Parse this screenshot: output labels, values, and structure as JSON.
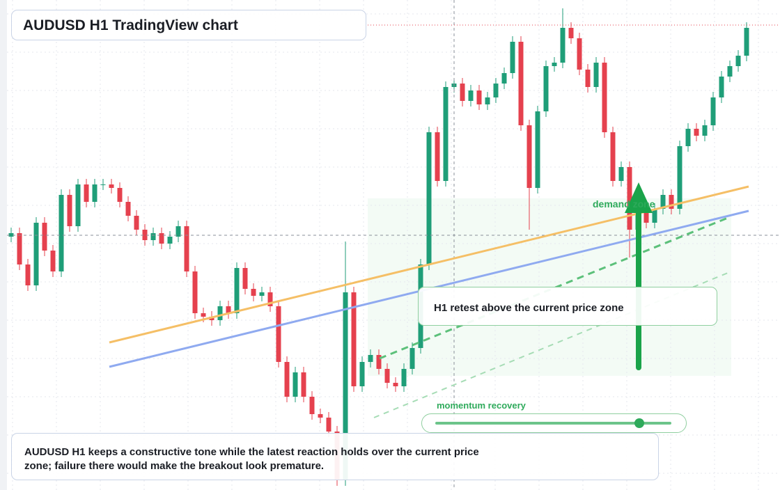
{
  "chart_data": {
    "type": "candlestick",
    "title": "AUDUSD H1 TradingView chart",
    "ylim": [
      0,
      704
    ],
    "up_color": "#1f9e78",
    "down_color": "#e5414e",
    "open": [
      364,
      369,
      324,
      294,
      384,
      344,
      314,
      424,
      379,
      439,
      414,
      439,
      439,
      434,
      414,
      394,
      374,
      359,
      369,
      354,
      364,
      379,
      314,
      254,
      249,
      244,
      264,
      254,
      319,
      289,
      279,
      284,
      264,
      184,
      134,
      169,
      134,
      109,
      104,
      84,
      14,
      284,
      149,
      184,
      194,
      174,
      154,
      149,
      174,
      204,
      324,
      514,
      444,
      579,
      584,
      559,
      574,
      554,
      564,
      584,
      599,
      644,
      524,
      434,
      544,
      609,
      614,
      664,
      649,
      604,
      579,
      614,
      514,
      444,
      464,
      374,
      409,
      384,
      404,
      424,
      404,
      494,
      519,
      509,
      524,
      564,
      594,
      609,
      624
    ],
    "high": [
      377,
      377,
      332,
      392,
      392,
      352,
      432,
      432,
      447,
      447,
      447,
      447,
      447,
      442,
      422,
      402,
      382,
      377,
      377,
      372,
      387,
      387,
      322,
      262,
      257,
      272,
      272,
      327,
      327,
      297,
      292,
      292,
      272,
      192,
      177,
      177,
      142,
      117,
      112,
      92,
      357,
      292,
      192,
      202,
      202,
      182,
      162,
      182,
      212,
      332,
      522,
      522,
      587,
      592,
      592,
      582,
      582,
      572,
      592,
      607,
      652,
      652,
      532,
      552,
      617,
      622,
      692,
      672,
      657,
      612,
      622,
      622,
      522,
      472,
      472,
      417,
      417,
      412,
      432,
      432,
      502,
      527,
      527,
      532,
      572,
      602,
      617,
      632,
      672
    ],
    "low": [
      356,
      316,
      286,
      286,
      336,
      306,
      306,
      371,
      371,
      406,
      406,
      431,
      426,
      406,
      386,
      366,
      351,
      351,
      346,
      346,
      356,
      306,
      246,
      241,
      236,
      236,
      246,
      246,
      281,
      271,
      271,
      256,
      176,
      126,
      126,
      126,
      101,
      96,
      76,
      6,
      6,
      141,
      141,
      176,
      166,
      146,
      141,
      141,
      166,
      196,
      316,
      436,
      436,
      571,
      551,
      551,
      546,
      546,
      556,
      576,
      591,
      516,
      374,
      426,
      536,
      601,
      606,
      641,
      596,
      571,
      571,
      506,
      436,
      436,
      334,
      366,
      376,
      376,
      396,
      396,
      396,
      486,
      501,
      501,
      516,
      556,
      586,
      601,
      616
    ],
    "close": [
      369,
      324,
      294,
      384,
      344,
      314,
      424,
      379,
      439,
      414,
      439,
      439,
      434,
      414,
      394,
      374,
      359,
      369,
      354,
      364,
      379,
      314,
      254,
      249,
      244,
      264,
      254,
      319,
      289,
      279,
      284,
      264,
      184,
      134,
      169,
      134,
      109,
      104,
      84,
      14,
      284,
      149,
      184,
      194,
      174,
      154,
      149,
      174,
      204,
      324,
      514,
      444,
      579,
      584,
      559,
      574,
      554,
      564,
      584,
      599,
      644,
      524,
      434,
      544,
      609,
      614,
      664,
      649,
      604,
      579,
      614,
      514,
      444,
      464,
      374,
      409,
      384,
      404,
      424,
      404,
      494,
      519,
      509,
      524,
      564,
      594,
      609,
      624,
      664
    ]
  },
  "annotations": {
    "demand_zone": "demand zone",
    "retest": "H1 retest above the current price zone",
    "momentum": "momentum recovery"
  },
  "description": "AUDUSD H1 keeps a constructive tone while the latest reaction holds over the current price zone; failure there would make the breakout look premature."
}
